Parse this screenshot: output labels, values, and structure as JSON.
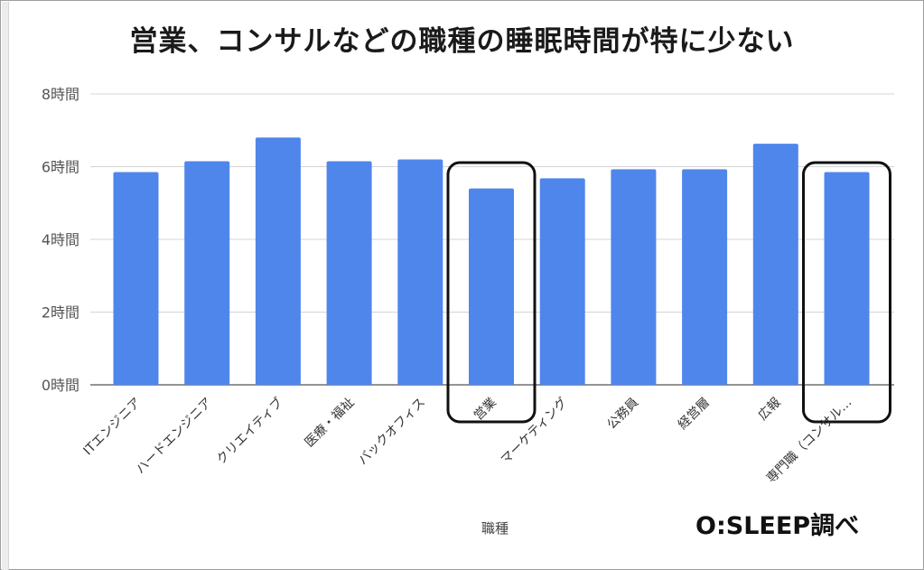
{
  "chart_data": {
    "type": "bar",
    "title": "営業、コンサルなどの職種の睡眠時間が特に少ない",
    "xlabel": "職種",
    "ylabel": "",
    "categories": [
      "ITエンジニア",
      "ハードエンジニア",
      "クリエイティブ",
      "医療・福祉",
      "バックオフィス",
      "営業",
      "マーケティング",
      "公務員",
      "経営層",
      "広報",
      "専門職（コンサル…"
    ],
    "series": [
      {
        "values": [
          5.85,
          6.15,
          6.8,
          6.15,
          6.2,
          5.4,
          5.68,
          5.93,
          5.93,
          6.63,
          5.85
        ],
        "color": "#4f86eb"
      }
    ],
    "ylim": [
      0,
      8
    ],
    "yticks": [
      {
        "value": 0,
        "label": "0時間"
      },
      {
        "value": 2,
        "label": "2時間"
      },
      {
        "value": 4,
        "label": "4時間"
      },
      {
        "value": 6,
        "label": "6時間"
      },
      {
        "value": 8,
        "label": "8時間"
      }
    ],
    "highlighted_categories": [
      "営業",
      "専門職（コンサル…"
    ],
    "grid": true,
    "legend": "none"
  },
  "credit": "O:SLEEP調べ"
}
